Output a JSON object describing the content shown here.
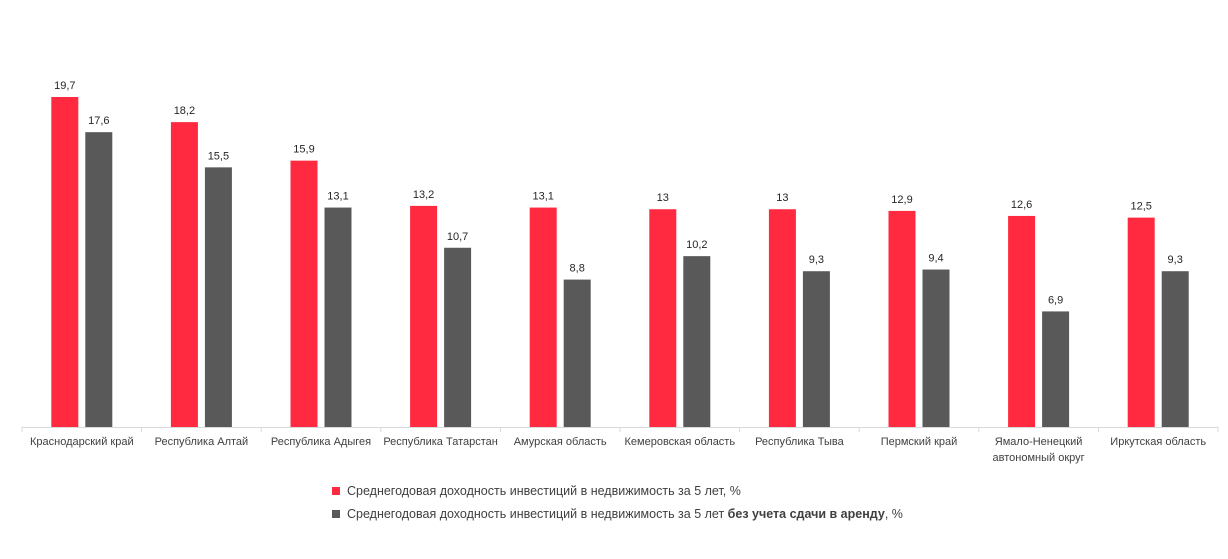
{
  "chart_data": {
    "type": "bar",
    "title": "",
    "xlabel": "",
    "ylabel": "",
    "ylim": [
      0,
      20
    ],
    "grid": false,
    "legend_position": "bottom",
    "categories": [
      [
        "Краснодарский край"
      ],
      [
        "Республика Алтай"
      ],
      [
        "Республика Адыгея"
      ],
      [
        "Республика Татарстан"
      ],
      [
        "Амурская область"
      ],
      [
        "Кемеровская область"
      ],
      [
        "Республика Тыва"
      ],
      [
        "Пермский край"
      ],
      [
        "Ямало-Ненецкий",
        "автономный округ"
      ],
      [
        "Иркутская область"
      ]
    ],
    "series": [
      {
        "name": "Среднегодовая доходность инвестиций в недвижимость за 5 лет, %",
        "color": "#FF2A40",
        "values": [
          19.7,
          18.2,
          15.9,
          13.2,
          13.1,
          13,
          13,
          12.9,
          12.6,
          12.5
        ],
        "labels": [
          "19,7",
          "18,2",
          "15,9",
          "13,2",
          "13,1",
          "13",
          "13",
          "12,9",
          "12,6",
          "12,5"
        ]
      },
      {
        "name": "Среднегодовая доходность инвестиций в недвижимость за 5 лет без учета сдачи в аренду, %",
        "color": "#595959",
        "values": [
          17.6,
          15.5,
          13.1,
          10.7,
          8.8,
          10.2,
          9.3,
          9.4,
          6.9,
          9.3
        ],
        "labels": [
          "17,6",
          "15,5",
          "13,1",
          "10,7",
          "8,8",
          "10,2",
          "9,3",
          "9,4",
          "6,9",
          "9,3"
        ]
      }
    ]
  },
  "legend": {
    "item1": {
      "text": "Среднегодовая доходность инвестиций в недвижимость за 5 лет, %"
    },
    "item2": {
      "text_before": "Среднегодовая доходность инвестиций в недвижимость за 5 лет ",
      "text_bold": "без учета сдачи в аренду",
      "text_after": ", %"
    }
  }
}
